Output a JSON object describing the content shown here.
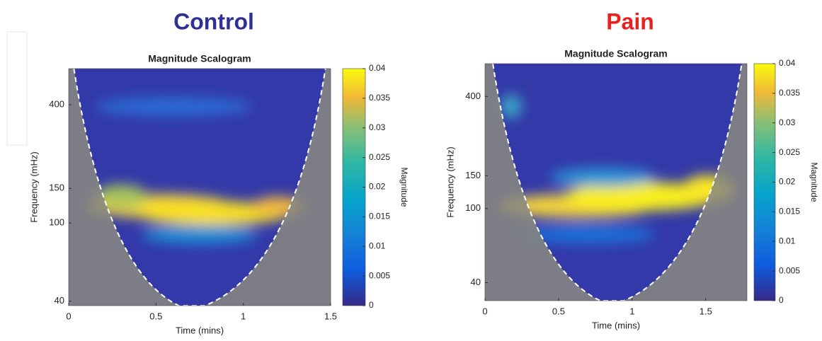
{
  "chart_data": [
    {
      "type": "scalogram",
      "panel_title": "Control",
      "panel_color": "#2e3192",
      "title": "Magnitude Scalogram",
      "xlabel": "Time (mins)",
      "ylabel": "Frequency (mHz)",
      "colorbar_label": "Magnitude",
      "xlim": [
        0,
        1.5
      ],
      "xticks": [
        0,
        0.5,
        1,
        1.5
      ],
      "ylim": [
        38,
        610
      ],
      "yticks": [
        40,
        100,
        150,
        400
      ],
      "yscale": "log",
      "clim": [
        0,
        0.04
      ],
      "cticks": [
        0,
        0.005,
        0.01,
        0.015,
        0.02,
        0.025,
        0.03,
        0.035,
        0.04
      ]
    },
    {
      "type": "scalogram",
      "panel_title": "Pain",
      "panel_color": "#e8231f",
      "title": "Magnitude Scalogram",
      "xlabel": "Time (mins)",
      "ylabel": "Frequency (mHz)",
      "colorbar_label": "Magnitude",
      "xlim": [
        0,
        1.78
      ],
      "xticks": [
        0,
        0.5,
        1,
        1.5
      ],
      "ylim": [
        32,
        600
      ],
      "yticks": [
        40,
        100,
        150,
        400
      ],
      "yscale": "log",
      "clim": [
        0,
        0.04
      ],
      "cticks": [
        0,
        0.005,
        0.01,
        0.015,
        0.02,
        0.025,
        0.03,
        0.035,
        0.04
      ]
    }
  ]
}
